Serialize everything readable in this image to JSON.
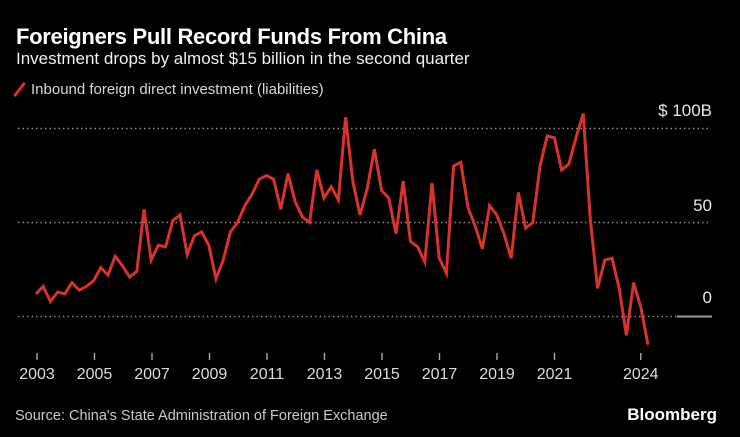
{
  "header": {
    "title": "Foreigners Pull Record Funds From China",
    "subtitle": "Investment drops by almost $15 billion in the second quarter"
  },
  "legend": {
    "label": "Inbound foreign direct investment (liabilities)"
  },
  "chart_data": {
    "type": "line",
    "title": "Foreigners Pull Record Funds From China",
    "subtitle": "Investment drops by almost $15 billion in the second quarter",
    "legend_position": "top-left",
    "grid": {
      "style": "dotted-horizontal",
      "values": [
        100,
        50,
        0
      ]
    },
    "x_axis": {
      "ticks": [
        {
          "label": "2003",
          "year": 2003
        },
        {
          "label": "2005",
          "year": 2005
        },
        {
          "label": "2007",
          "year": 2007
        },
        {
          "label": "2009",
          "year": 2009
        },
        {
          "label": "2011",
          "year": 2011
        },
        {
          "label": "2013",
          "year": 2013
        },
        {
          "label": "2015",
          "year": 2015
        },
        {
          "label": "2017",
          "year": 2017
        },
        {
          "label": "2019",
          "year": 2019
        },
        {
          "label": "2021",
          "year": 2021
        },
        {
          "label": "2024",
          "year": 2024
        }
      ]
    },
    "y_axis": {
      "unit": "USD billions",
      "range": [
        -22,
        112
      ],
      "ticks": [
        {
          "label": "$ 100B",
          "value": 100
        },
        {
          "label": "50",
          "value": 50
        },
        {
          "label": "0",
          "value": 0
        }
      ]
    },
    "series": [
      {
        "name": "Inbound foreign direct investment (liabilities)",
        "unit": "USD billions",
        "frequency": "quarterly",
        "start": "2003 Q1",
        "end": "2024 Q2",
        "color": "#d8322d",
        "values": [
          12,
          16,
          8,
          13,
          12,
          18,
          14,
          16,
          19,
          26,
          22,
          32,
          27,
          21,
          24,
          57,
          30,
          38,
          37,
          51,
          54,
          33,
          43,
          45,
          38,
          20,
          30,
          45,
          50,
          59,
          65,
          73,
          75,
          73,
          57,
          76,
          61,
          53,
          50,
          78,
          63,
          69,
          62,
          106,
          72,
          54,
          68,
          89,
          67,
          63,
          44,
          72,
          40,
          37,
          29,
          71,
          31,
          23,
          80,
          82,
          58,
          48,
          36,
          59,
          54,
          44,
          31,
          66,
          47,
          50,
          80,
          96,
          95,
          78,
          81,
          95,
          108,
          51,
          15,
          30,
          31,
          15,
          -10,
          18,
          5,
          -15
        ]
      }
    ]
  },
  "footer": {
    "source": "Source: China's State Administration of Foreign Exchange",
    "brand": "Bloomberg"
  },
  "colors": {
    "background": "#000000",
    "line": "#d8322d",
    "grid": "#8a8a8a",
    "axis": "#a8a8a8",
    "zero_line": "#9c9c9c",
    "title_text": "#ffffff",
    "subtitle_text": "#f0f0f0",
    "legend_text": "#d6d6d6",
    "axis_label_text": "#dcdcdc",
    "y_label_text": "#e8e8e8",
    "source_text": "#c9c9c9"
  }
}
